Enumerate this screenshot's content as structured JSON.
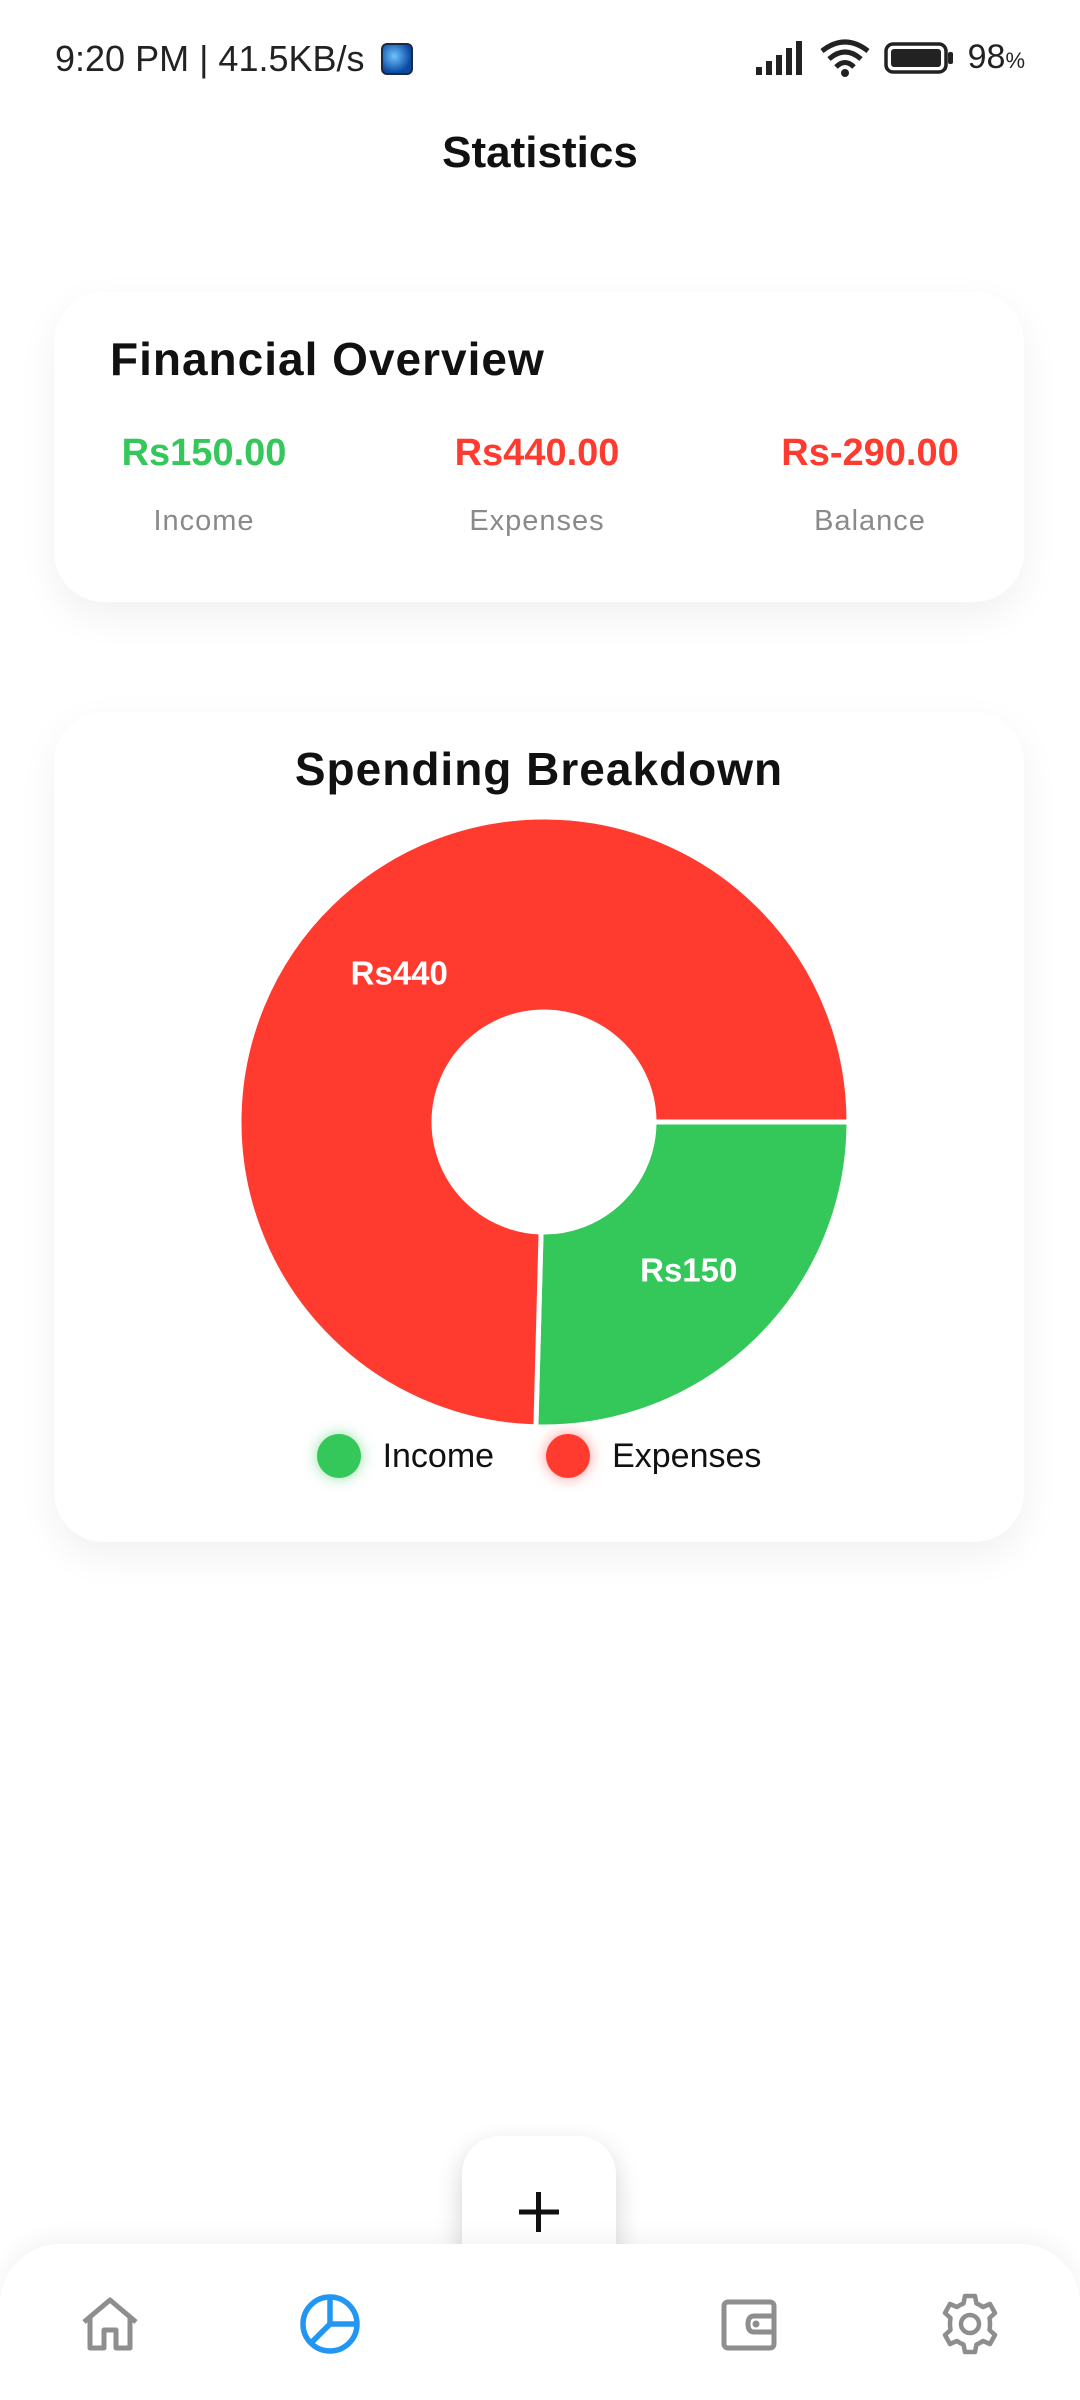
{
  "status_bar": {
    "time": "9:20 PM | 41.5KB/s",
    "battery_percent": "98",
    "battery_unit": "%"
  },
  "header": {
    "title": "Statistics"
  },
  "overview": {
    "title": "Financial Overview",
    "items": [
      {
        "value": "Rs150.00",
        "label": "Income",
        "color": "#34c759"
      },
      {
        "value": "Rs440.00",
        "label": "Expenses",
        "color": "#ff3b30"
      },
      {
        "value": "Rs-290.00",
        "label": "Balance",
        "color": "#ff3b30"
      }
    ]
  },
  "breakdown": {
    "title": "Spending Breakdown",
    "legend": [
      {
        "label": "Income",
        "color": "#34c759"
      },
      {
        "label": "Expenses",
        "color": "#ff3b30"
      }
    ]
  },
  "chart_data": {
    "type": "pie",
    "title": "Spending Breakdown",
    "categories": [
      "Income",
      "Expenses"
    ],
    "values": [
      150,
      440
    ],
    "labels": [
      "Rs150",
      "Rs440"
    ],
    "colors": [
      "#34c759",
      "#ff3b30"
    ],
    "donut": true,
    "legend": "bottom"
  },
  "fab": {
    "icon": "plus-icon"
  },
  "nav": {
    "items": [
      {
        "icon": "home-icon",
        "active": false
      },
      {
        "icon": "pie-chart-icon",
        "active": true
      },
      {
        "icon": "wallet-icon",
        "active": false
      },
      {
        "icon": "gear-icon",
        "active": false
      }
    ],
    "active_color": "#2196f3",
    "inactive_color": "#8e8e8e"
  }
}
